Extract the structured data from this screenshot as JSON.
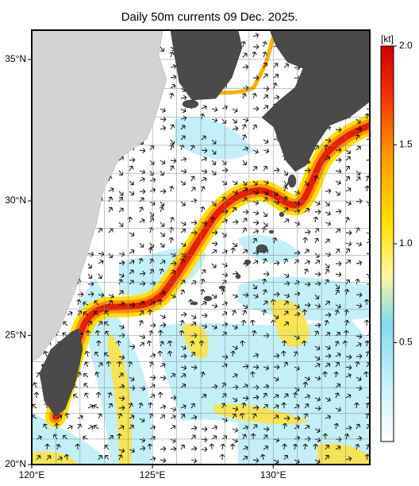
{
  "title": "Daily 50m currents 09 Dec. 2025.",
  "map": {
    "lon_lim": [
      120,
      134
    ],
    "lat_lim": [
      20,
      36
    ],
    "lat_ticks": [
      {
        "value": 35,
        "label": "35°N"
      },
      {
        "value": 30,
        "label": "30°N"
      },
      {
        "value": 25,
        "label": "25°N"
      },
      {
        "value": 20,
        "label": "20°N"
      }
    ],
    "lon_ticks": [
      {
        "value": 120,
        "label": "120°E"
      },
      {
        "value": 125,
        "label": "125°E"
      },
      {
        "value": 130,
        "label": "130°E"
      }
    ]
  },
  "colorbar": {
    "label": "[kt]",
    "lim": [
      0,
      2
    ],
    "ticks": [
      {
        "value": 2,
        "label": "2.0"
      },
      {
        "value": 1.5,
        "label": "1.5"
      },
      {
        "value": 1,
        "label": "1.0"
      },
      0.5
    ]
  }
}
